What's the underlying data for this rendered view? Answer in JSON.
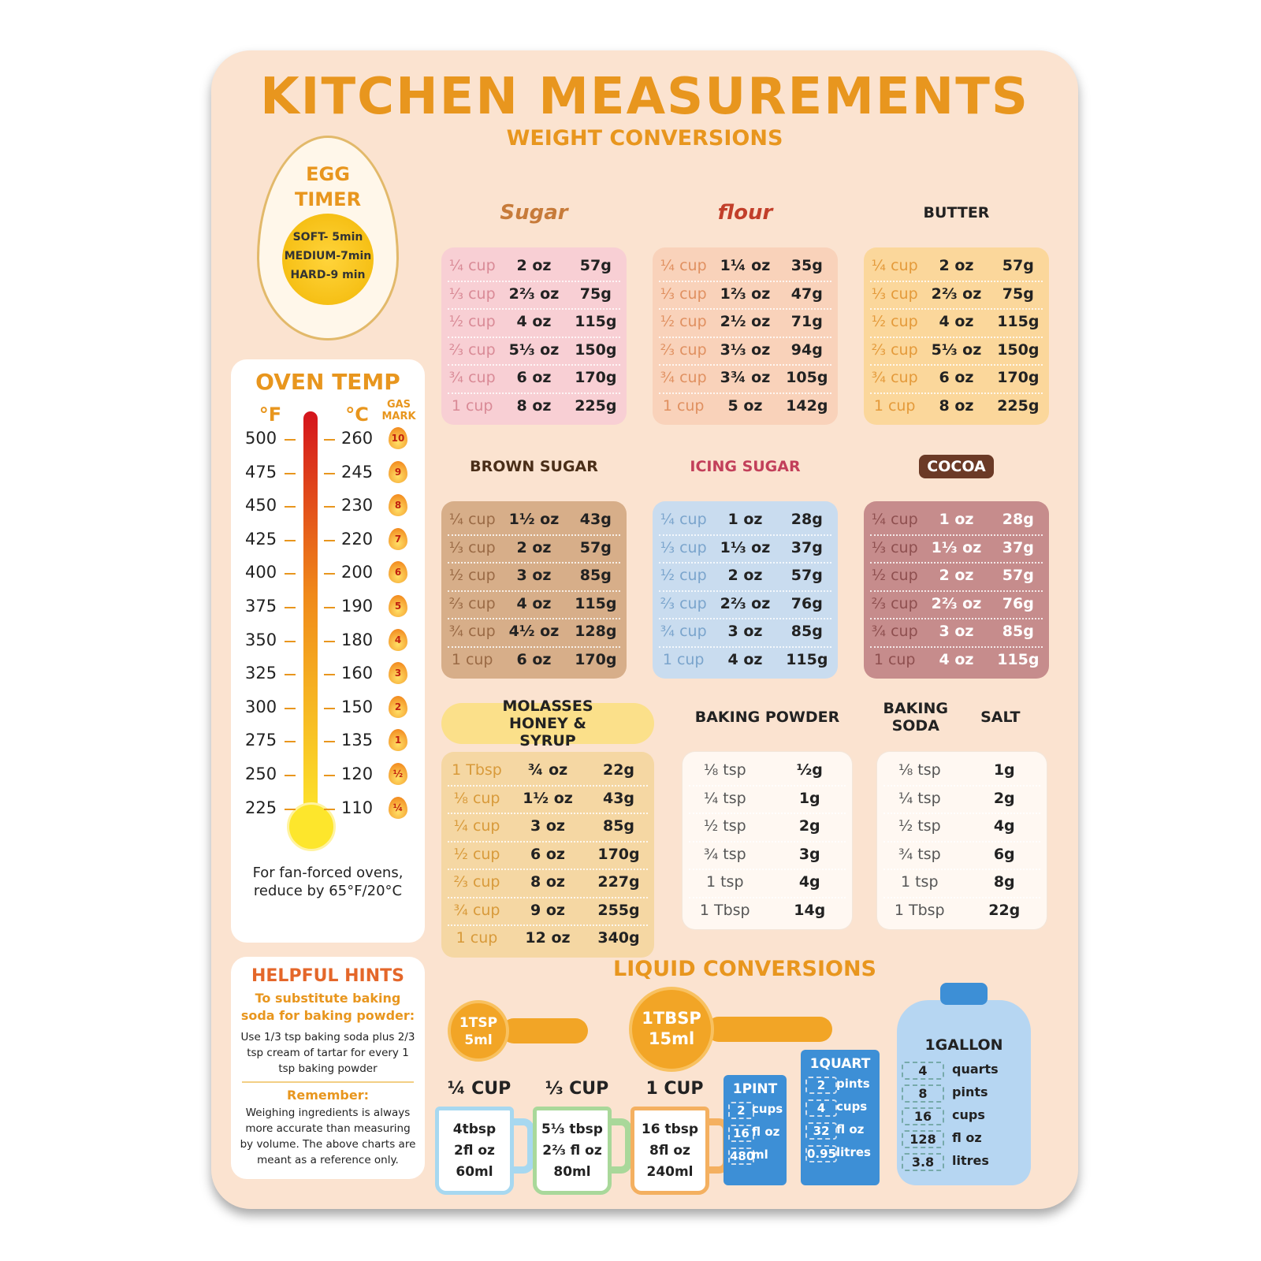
{
  "title": "KITCHEN MEASUREMENTS",
  "egg_timer": {
    "title": "EGG TIMER",
    "items": [
      "SOFT- 5min",
      "MEDIUM-7min",
      "HARD-9 min"
    ]
  },
  "oven_temp": {
    "title": "OVEN TEMP",
    "headers": [
      "°F",
      "°C",
      "GAS MARK"
    ],
    "rows": [
      [
        "500",
        "260",
        "10"
      ],
      [
        "475",
        "245",
        "9"
      ],
      [
        "450",
        "230",
        "8"
      ],
      [
        "425",
        "220",
        "7"
      ],
      [
        "400",
        "200",
        "6"
      ],
      [
        "375",
        "190",
        "5"
      ],
      [
        "350",
        "180",
        "4"
      ],
      [
        "325",
        "160",
        "3"
      ],
      [
        "300",
        "150",
        "2"
      ],
      [
        "275",
        "135",
        "1"
      ],
      [
        "250",
        "120",
        "½"
      ],
      [
        "225",
        "110",
        "¼"
      ]
    ],
    "note": "For fan-forced ovens, reduce by 65°F/20°C"
  },
  "weight_conversions": {
    "title": "WEIGHT CONVERSIONS",
    "ingredients": [
      {
        "labels": [
          "Sugar"
        ],
        "rows": [
          [
            "¼ cup",
            "2 oz",
            "57g"
          ],
          [
            "⅓ cup",
            "2⅔ oz",
            "75g"
          ],
          [
            "½ cup",
            "4 oz",
            "115g"
          ],
          [
            "⅔ cup",
            "5⅓ oz",
            "150g"
          ],
          [
            "¾ cup",
            "6 oz",
            "170g"
          ],
          [
            "1 cup",
            "8 oz",
            "225g"
          ]
        ]
      },
      {
        "labels": [
          "flour"
        ],
        "rows": [
          [
            "¼ cup",
            "1¼ oz",
            "35g"
          ],
          [
            "⅓ cup",
            "1⅔ oz",
            "47g"
          ],
          [
            "½ cup",
            "2½ oz",
            "71g"
          ],
          [
            "⅔ cup",
            "3⅓ oz",
            "94g"
          ],
          [
            "¾ cup",
            "3¾ oz",
            "105g"
          ],
          [
            "1 cup",
            "5 oz",
            "142g"
          ]
        ]
      },
      {
        "labels": [
          "BUTTER"
        ],
        "rows": [
          [
            "¼ cup",
            "2 oz",
            "57g"
          ],
          [
            "⅓ cup",
            "2⅔ oz",
            "75g"
          ],
          [
            "½ cup",
            "4 oz",
            "115g"
          ],
          [
            "⅔ cup",
            "5⅓ oz",
            "150g"
          ],
          [
            "¾ cup",
            "6 oz",
            "170g"
          ],
          [
            "1 cup",
            "8 oz",
            "225g"
          ]
        ]
      },
      {
        "labels": [
          "BROWN SUGAR"
        ],
        "rows": [
          [
            "¼ cup",
            "1½ oz",
            "43g"
          ],
          [
            "⅓ cup",
            "2 oz",
            "57g"
          ],
          [
            "½ cup",
            "3 oz",
            "85g"
          ],
          [
            "⅔ cup",
            "4 oz",
            "115g"
          ],
          [
            "¾ cup",
            "4½ oz",
            "128g"
          ],
          [
            "1 cup",
            "6 oz",
            "170g"
          ]
        ]
      },
      {
        "labels": [
          "ICING SUGAR"
        ],
        "rows": [
          [
            "¼ cup",
            "1 oz",
            "28g"
          ],
          [
            "⅓ cup",
            "1⅓ oz",
            "37g"
          ],
          [
            "½ cup",
            "2 oz",
            "57g"
          ],
          [
            "⅔ cup",
            "2⅔ oz",
            "76g"
          ],
          [
            "¾ cup",
            "3 oz",
            "85g"
          ],
          [
            "1 cup",
            "4 oz",
            "115g"
          ]
        ]
      },
      {
        "labels": [
          "COCOA"
        ],
        "rows": [
          [
            "¼ cup",
            "1 oz",
            "28g"
          ],
          [
            "⅓ cup",
            "1⅓ oz",
            "37g"
          ],
          [
            "½ cup",
            "2 oz",
            "57g"
          ],
          [
            "⅔ cup",
            "2⅔ oz",
            "76g"
          ],
          [
            "¾ cup",
            "3 oz",
            "85g"
          ],
          [
            "1 cup",
            "4 oz",
            "115g"
          ]
        ]
      },
      {
        "labels": [
          "MOLASSES HONEY & SYRUP"
        ],
        "rows": [
          [
            "1 Tbsp",
            "¾ oz",
            "22g"
          ],
          [
            "⅛ cup",
            "1½ oz",
            "43g"
          ],
          [
            "¼ cup",
            "3 oz",
            "85g"
          ],
          [
            "½ cup",
            "6 oz",
            "170g"
          ],
          [
            "⅔ cup",
            "8 oz",
            "227g"
          ],
          [
            "¾ cup",
            "9 oz",
            "255g"
          ],
          [
            "1 cup",
            "12 oz",
            "340g"
          ]
        ]
      },
      {
        "labels": [
          "BAKING POWDER"
        ],
        "rows": [
          [
            "⅛ tsp",
            "½g"
          ],
          [
            "¼ tsp",
            "1g"
          ],
          [
            "½ tsp",
            "2g"
          ],
          [
            "¾ tsp",
            "3g"
          ],
          [
            "1 tsp",
            "4g"
          ],
          [
            "1 Tbsp",
            "14g"
          ]
        ]
      },
      {
        "labels": [
          "BAKING SODA",
          "SALT"
        ],
        "rows": [
          [
            "⅛ tsp",
            "1g"
          ],
          [
            "¼ tsp",
            "2g"
          ],
          [
            "½ tsp",
            "4g"
          ],
          [
            "¾ tsp",
            "6g"
          ],
          [
            "1 tsp",
            "8g"
          ],
          [
            "1 Tbsp",
            "22g"
          ]
        ]
      }
    ]
  },
  "helpful_hints": {
    "title": "HELPFUL HINTS",
    "subtitle": "To substitute baking soda for baking powder:",
    "text": "Use 1/3 tsp baking soda plus 2/3 tsp cream of tartar for every 1 tsp baking powder",
    "remember_title": "Remember:",
    "remember_text": "Weighing ingredients is always more accurate than measuring by volume. The above charts are meant as a reference only."
  },
  "liquid_conversions": {
    "title": "LIQUID CONVERSIONS",
    "spoons": [
      [
        "1TSP",
        "5ml"
      ],
      [
        "1TBSP",
        "15ml"
      ]
    ],
    "cups": [
      {
        "label": "¼ CUP",
        "lines": [
          "4tbsp",
          "2fl oz",
          "60ml"
        ]
      },
      {
        "label": "⅓ CUP",
        "lines": [
          "5⅓ tbsp",
          "2⅔ fl oz",
          "80ml"
        ]
      },
      {
        "label": "1 CUP",
        "lines": [
          "16 tbsp",
          "8fl oz",
          "240ml"
        ]
      }
    ],
    "containers": [
      {
        "label": "1PINT",
        "rows": [
          [
            "2",
            "cups"
          ],
          [
            "16",
            "fl oz"
          ],
          [
            "480",
            "ml"
          ]
        ]
      },
      {
        "label": "1QUART",
        "rows": [
          [
            "2",
            "pints"
          ],
          [
            "4",
            "cups"
          ],
          [
            "32",
            "fl oz"
          ],
          [
            "0.95",
            "litres"
          ]
        ]
      },
      {
        "label": "1GALLON",
        "rows": [
          [
            "4",
            "quarts"
          ],
          [
            "8",
            "pints"
          ],
          [
            "16",
            "cups"
          ],
          [
            "128",
            "fl oz"
          ],
          [
            "3.8",
            "litres"
          ]
        ]
      }
    ]
  }
}
